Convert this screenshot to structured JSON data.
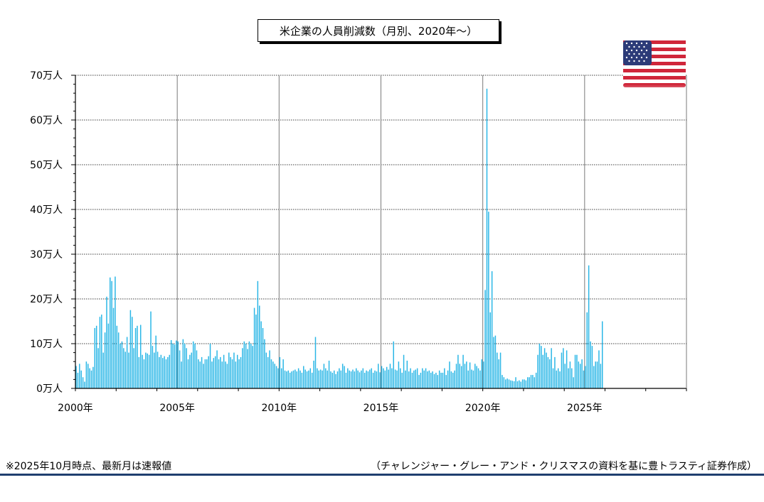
{
  "chart_data": {
    "type": "bar",
    "title": "米企業の人員削減数（月別、2020年～）",
    "ylim": [
      0,
      700000
    ],
    "xlim": [
      2000,
      2030
    ],
    "y_tick_values": [
      0,
      100000,
      200000,
      300000,
      400000,
      500000,
      600000,
      700000
    ],
    "y_tick_labels": [
      "0万人",
      "10万人",
      "20万人",
      "30万人",
      "40万人",
      "50万人",
      "60万人",
      "70万人"
    ],
    "x_tick_values": [
      2000,
      2005,
      2010,
      2015,
      2020,
      2025
    ],
    "x_tick_labels": [
      "2000年",
      "2005年",
      "2010年",
      "2015年",
      "2020年",
      "2025年"
    ],
    "grid": true,
    "bar_color": "#29b6e6",
    "start": "2000-01",
    "series": [
      {
        "values": [
          50000,
          35000,
          55000,
          40000,
          25000,
          15000,
          60000,
          55000,
          45000,
          40000,
          48000,
          135000,
          140000,
          90000,
          160000,
          165000,
          80000,
          125000,
          205000,
          145000,
          248000,
          240000,
          180000,
          250000,
          140000,
          125000,
          100000,
          105000,
          90000,
          82000,
          115000,
          80000,
          175000,
          160000,
          90000,
          135000,
          140000,
          70000,
          142000,
          75000,
          65000,
          80000,
          78000,
          75000,
          172000,
          95000,
          80000,
          118000,
          82000,
          70000,
          75000,
          68000,
          72000,
          65000,
          70000,
          75000,
          108000,
          100000,
          98000,
          107000,
          105000,
          85000,
          60000,
          110000,
          100000,
          90000,
          65000,
          75000,
          80000,
          105000,
          100000,
          85000,
          65000,
          60000,
          70000,
          55000,
          65000,
          65000,
          72000,
          100000,
          60000,
          68000,
          72000,
          85000,
          65000,
          70000,
          60000,
          75000,
          60000,
          55000,
          80000,
          70000,
          65000,
          80000,
          60000,
          75000,
          65000,
          70000,
          90000,
          105000,
          100000,
          88000,
          105000,
          100000,
          95000,
          180000,
          165000,
          240000,
          185000,
          150000,
          135000,
          110000,
          80000,
          70000,
          85000,
          65000,
          60000,
          55000,
          50000,
          45000,
          70000,
          45000,
          65000,
          40000,
          38000,
          40000,
          35000,
          38000,
          40000,
          42000,
          38000,
          45000,
          40000,
          35000,
          50000,
          42000,
          38000,
          40000,
          45000,
          35000,
          62000,
          115000,
          45000,
          40000,
          42000,
          40000,
          55000,
          45000,
          40000,
          62000,
          38000,
          35000,
          40000,
          32000,
          38000,
          45000,
          40000,
          55000,
          50000,
          35000,
          45000,
          40000,
          38000,
          42000,
          38000,
          45000,
          40000,
          36000,
          40000,
          45000,
          35000,
          40000,
          38000,
          42000,
          45000,
          35000,
          40000,
          38000,
          55000,
          36000,
          50000,
          45000,
          40000,
          48000,
          42000,
          55000,
          45000,
          105000,
          42000,
          40000,
          60000,
          45000,
          35000,
          75000,
          40000,
          62000,
          38000,
          45000,
          35000,
          40000,
          42000,
          45000,
          30000,
          35000,
          45000,
          40000,
          45000,
          38000,
          40000,
          35000,
          38000,
          32000,
          35000,
          30000,
          40000,
          35000,
          35000,
          45000,
          30000,
          40000,
          60000,
          38000,
          35000,
          40000,
          55000,
          75000,
          55000,
          50000,
          75000,
          55000,
          60000,
          40000,
          58000,
          42000,
          40000,
          55000,
          50000,
          45000,
          40000,
          65000,
          60000,
          220000,
          670000,
          395000,
          170000,
          262000,
          115000,
          118000,
          80000,
          65000,
          80000,
          30000,
          25000,
          20000,
          22000,
          20000,
          18000,
          17000,
          16000,
          25000,
          16000,
          18000,
          15000,
          20000,
          20000,
          18000,
          25000,
          25000,
          30000,
          30000,
          25000,
          35000,
          75000,
          100000,
          95000,
          75000,
          90000,
          80000,
          70000,
          65000,
          90000,
          45000,
          70000,
          40000,
          45000,
          38000,
          80000,
          90000,
          55000,
          85000,
          45000,
          60000,
          45000,
          25000,
          75000,
          75000,
          60000,
          55000,
          65000,
          40000,
          50000,
          170000,
          275000,
          105000,
          95000,
          50000,
          60000,
          60000,
          85000,
          55000,
          150000
        ]
      }
    ]
  },
  "footnote": "※2025年10月時点、最新月は速報値",
  "source": "（チャレンジャー・グレー・アンド・クリスマスの資料を基に豊トラスティ証券作成）",
  "flag_icon": "us-flag-icon",
  "colors": {
    "bar": "#29b6e6",
    "axis": "#000000",
    "grid": "#000000",
    "rule": "#1f3f6f",
    "flag_red": "#d0263a",
    "flag_blue": "#2c3b78"
  }
}
